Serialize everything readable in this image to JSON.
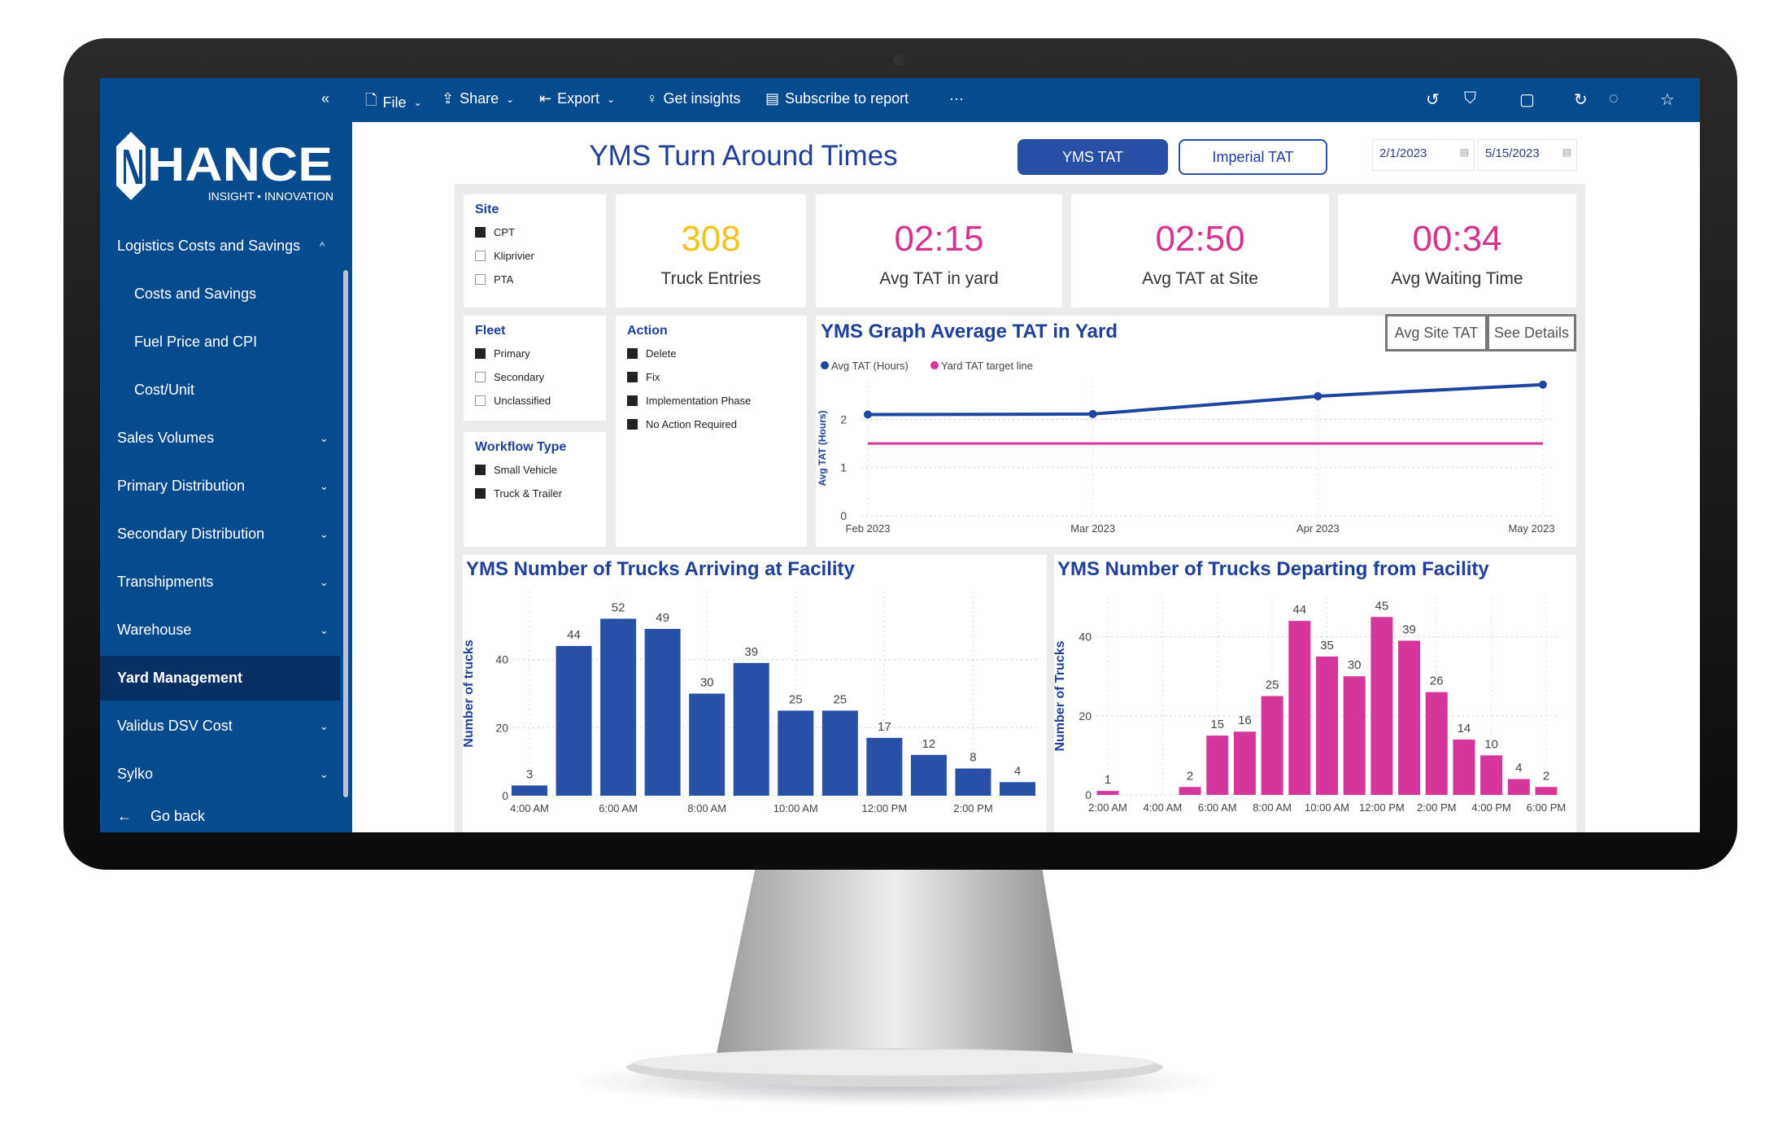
{
  "toolbar": {
    "collapse": "«",
    "file": "File",
    "share": "Share",
    "export": "Export",
    "insights": "Get insights",
    "subscribe": "Subscribe to report",
    "more": "···"
  },
  "logo": {
    "brand": "NHANCE",
    "tagline": "INSIGHT • INNOVATION"
  },
  "sidebar": {
    "items": [
      {
        "label": "Logistics Costs and Savings",
        "chevron": "^",
        "sub": false
      },
      {
        "label": "Costs and Savings",
        "sub": true
      },
      {
        "label": "Fuel Price and CPI",
        "sub": true
      },
      {
        "label": "Cost/Unit",
        "sub": true
      },
      {
        "label": "Sales Volumes",
        "chevron": "⌄"
      },
      {
        "label": "Primary Distribution",
        "chevron": "⌄"
      },
      {
        "label": "Secondary Distribution",
        "chevron": "⌄"
      },
      {
        "label": "Transhipments",
        "chevron": "⌄"
      },
      {
        "label": "Warehouse",
        "chevron": "⌄"
      },
      {
        "label": "Yard Management",
        "active": true
      },
      {
        "label": "Validus DSV Cost",
        "chevron": "⌄"
      },
      {
        "label": "Sylko",
        "chevron": "⌄"
      }
    ],
    "go_back": "Go back"
  },
  "header": {
    "title": "YMS Turn Around Times",
    "btn_yms": "YMS TAT",
    "btn_imperial": "Imperial TAT",
    "date_from": "2/1/2023",
    "date_to": "5/15/2023"
  },
  "slicers": {
    "site": {
      "title": "Site",
      "options": [
        {
          "label": "CPT",
          "checked": true
        },
        {
          "label": "Kliprivier",
          "checked": false
        },
        {
          "label": "PTA",
          "checked": false
        }
      ]
    },
    "fleet": {
      "title": "Fleet",
      "options": [
        {
          "label": "Primary",
          "checked": true
        },
        {
          "label": "Secondary",
          "checked": false
        },
        {
          "label": "Unclassified",
          "checked": false
        }
      ]
    },
    "workflow": {
      "title": "Workflow Type",
      "options": [
        {
          "label": "Small Vehicle",
          "checked": true
        },
        {
          "label": "Truck & Trailer",
          "checked": true
        }
      ]
    },
    "action": {
      "title": "Action",
      "options": [
        {
          "label": "Delete",
          "checked": true
        },
        {
          "label": "Fix",
          "checked": true
        },
        {
          "label": "Implementation Phase",
          "checked": true
        },
        {
          "label": "No Action Required",
          "checked": true
        }
      ]
    }
  },
  "kpis": [
    {
      "value": "308",
      "label": "Truck Entries",
      "color": "#f2c41a"
    },
    {
      "value": "02:15",
      "label": "Avg TAT in yard",
      "color": "#d6338f"
    },
    {
      "value": "02:50",
      "label": "Avg TAT at Site",
      "color": "#d6338f"
    },
    {
      "value": "00:34",
      "label": "Avg Waiting Time",
      "color": "#d6338f"
    }
  ],
  "line_buttons": {
    "avg_site": "Avg Site TAT",
    "details": "See Details"
  },
  "chart_data": [
    {
      "type": "line",
      "title": "YMS Graph Average TAT in Yard",
      "ylabel": "Avg TAT (Hours)",
      "xlabel": "",
      "categories": [
        "Feb 2023",
        "Mar 2023",
        "Apr 2023",
        "May 2023"
      ],
      "series": [
        {
          "name": "Avg TAT (Hours)",
          "values": [
            2.1,
            2.11,
            2.48,
            2.72
          ],
          "color": "#1f45a0"
        },
        {
          "name": "Yard TAT target line",
          "values": [
            1.5,
            1.5,
            1.5,
            1.5
          ],
          "color": "#d6359a"
        }
      ],
      "yticks": [
        0,
        1,
        2
      ],
      "ylim": [
        0,
        2.8
      ],
      "legend": "top-left",
      "grid": true
    },
    {
      "type": "bar",
      "title": "YMS Number of Trucks Arriving at Facility",
      "ylabel": "Number of trucks",
      "xlabel": "",
      "categories": [
        "4:00 AM",
        "5:00 AM",
        "6:00 AM",
        "7:00 AM",
        "8:00 AM",
        "9:00 AM",
        "10:00 AM",
        "11:00 AM",
        "12:00 PM",
        "1:00 PM",
        "2:00 PM",
        "3:00 PM"
      ],
      "tick_labels": [
        "4:00 AM",
        "",
        "6:00 AM",
        "",
        "8:00 AM",
        "",
        "10:00 AM",
        "",
        "12:00 PM",
        "",
        "2:00 PM",
        ""
      ],
      "values": [
        3,
        44,
        52,
        49,
        30,
        39,
        25,
        25,
        17,
        12,
        8,
        4
      ],
      "color": "#2850a5",
      "yticks": [
        0,
        20,
        40
      ],
      "ylim": [
        0,
        60
      ],
      "grid": true
    },
    {
      "type": "bar",
      "title": "YMS Number of Trucks Departing from Facility",
      "ylabel": "Number of Trucks",
      "xlabel": "",
      "categories": [
        "2:00 AM",
        "3:00 AM",
        "4:00 AM",
        "5:00 AM",
        "6:00 AM",
        "7:00 AM",
        "8:00 AM",
        "9:00 AM",
        "10:00 AM",
        "11:00 AM",
        "12:00 PM",
        "1:00 PM",
        "2:00 PM",
        "3:00 PM",
        "4:00 PM",
        "5:00 PM",
        "6:00 PM"
      ],
      "tick_labels": [
        "2:00 AM",
        "",
        "4:00 AM",
        "",
        "6:00 AM",
        "",
        "8:00 AM",
        "",
        "10:00 AM",
        "",
        "12:00 PM",
        "",
        "2:00 PM",
        "",
        "4:00 PM",
        "",
        "6:00 PM"
      ],
      "values": [
        1,
        null,
        null,
        2,
        15,
        16,
        25,
        44,
        35,
        30,
        45,
        39,
        26,
        14,
        10,
        4,
        2
      ],
      "color": "#d6359a",
      "yticks": [
        0,
        20,
        40
      ],
      "ylim": [
        0,
        50
      ],
      "grid": true
    }
  ]
}
